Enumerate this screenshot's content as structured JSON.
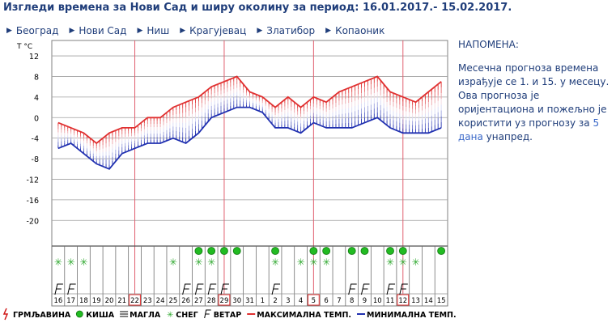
{
  "page": {
    "title": "Изгледи времена за Нови Сад и ширу околину за период: 16.01.2017.- 15.02.2017."
  },
  "nav": {
    "items": [
      {
        "label": "Београд"
      },
      {
        "label": "Нови Сад"
      },
      {
        "label": "Ниш"
      },
      {
        "label": "Крагујевац"
      },
      {
        "label": "Златибор"
      },
      {
        "label": "Копаоник"
      }
    ]
  },
  "note": {
    "heading": "НАПОМЕНА:",
    "text_before": "Месечна прогноза времена израђује се 1. и 15. у месецу. Ова прогноза је оријентациона и пожељно је користити уз прогнозу за ",
    "link_number": "5",
    "text_mid": " ",
    "link_word": "дана",
    "text_after": " унапред."
  },
  "chart_data": {
    "type": "line",
    "ylabel": "T °C",
    "ylim": [
      -25,
      15
    ],
    "yticks": [
      12,
      8,
      4,
      0,
      -4,
      -8,
      -12,
      -16,
      -20
    ],
    "categories": [
      "16",
      "17",
      "18",
      "19",
      "20",
      "21",
      "22",
      "23",
      "24",
      "25",
      "26",
      "27",
      "28",
      "29",
      "30",
      "31",
      "1",
      "2",
      "3",
      "4",
      "5",
      "6",
      "7",
      "8",
      "9",
      "10",
      "11",
      "12",
      "13",
      "14",
      "15"
    ],
    "highlighted_days": [
      "22",
      "29",
      "5",
      "12"
    ],
    "series": [
      {
        "name": "МАКСИМАЛНА ТЕМП.",
        "color": "#e03030",
        "values": [
          -1,
          -2,
          -3,
          -5,
          -3,
          -2,
          -2,
          0,
          0,
          2,
          3,
          4,
          6,
          7,
          8,
          5,
          4,
          2,
          4,
          2,
          4,
          3,
          5,
          6,
          7,
          8,
          5,
          4,
          3,
          5,
          7
        ]
      },
      {
        "name": "МИНИМАЛНА ТЕМП.",
        "color": "#2030b0",
        "values": [
          -6,
          -5,
          -7,
          -9,
          -10,
          -7,
          -6,
          -5,
          -5,
          -4,
          -5,
          -3,
          0,
          1,
          2,
          2,
          1,
          -2,
          -2,
          -3,
          -1,
          -2,
          -2,
          -2,
          -1,
          0,
          -2,
          -3,
          -3,
          -3,
          -2
        ]
      }
    ],
    "weather": {
      "rain": [
        "27",
        "28",
        "29",
        "30",
        "2",
        "5",
        "6",
        "8",
        "9",
        "11",
        "12",
        "15"
      ],
      "snow": [
        "16",
        "17",
        "18",
        "25",
        "27",
        "28",
        "2",
        "4",
        "5",
        "6",
        "11",
        "12",
        "13"
      ],
      "wind": [
        "16",
        "17",
        "26",
        "27",
        "28",
        "29",
        "2",
        "8",
        "9",
        "11",
        "12"
      ],
      "storm": [],
      "fog": []
    },
    "legend": [
      {
        "label": "ГРМЉАВИНА",
        "icon": "storm-icon"
      },
      {
        "label": "КИША",
        "icon": "rain-icon"
      },
      {
        "label": "МАГЛА",
        "icon": "fog-icon"
      },
      {
        "label": "СНЕГ",
        "icon": "snow-icon"
      },
      {
        "label": "ВЕТАР",
        "icon": "wind-icon"
      },
      {
        "label": "МАКСИМАЛНА ТЕМП.",
        "icon": "max-temp-line-icon"
      },
      {
        "label": "МИНИМАЛНА ТЕМП.",
        "icon": "min-temp-line-icon"
      }
    ],
    "colors": {
      "grid": "#a0a0a0",
      "separator": "#e06070",
      "rain": "#22bb22",
      "snow": "#33aa33",
      "storm": "#d01818"
    }
  }
}
